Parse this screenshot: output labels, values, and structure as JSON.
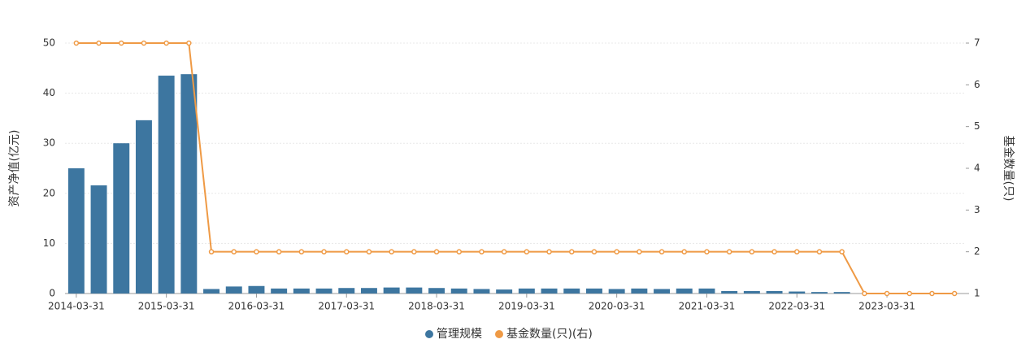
{
  "chart_data": {
    "type": "bar-line",
    "y_label": "资产净值(亿元)",
    "y2_label": "基金数量(只)",
    "categories": [
      "2014-03-31",
      null,
      null,
      null,
      "2015-03-31",
      null,
      null,
      null,
      "2016-03-31",
      null,
      null,
      null,
      "2017-03-31",
      null,
      null,
      null,
      "2018-03-31",
      null,
      null,
      null,
      "2019-03-31",
      null,
      null,
      null,
      "2020-03-31",
      null,
      null,
      null,
      "2021-03-31",
      null,
      null,
      null,
      "2022-03-31",
      null,
      null,
      null,
      "2023-03-31",
      null,
      null,
      null
    ],
    "series": [
      {
        "name": "管理规模",
        "type": "bar",
        "color": "#3d76a0",
        "values": [
          25,
          21.6,
          30,
          34.6,
          43.5,
          43.8,
          0.9,
          1.4,
          1.5,
          1.0,
          1.0,
          1.0,
          1.1,
          1.1,
          1.2,
          1.2,
          1.1,
          1.0,
          0.9,
          0.8,
          1.0,
          1.0,
          1.0,
          1.0,
          0.9,
          1.0,
          0.9,
          1.0,
          1.0,
          0.5,
          0.5,
          0.5,
          0.4,
          0.3,
          0.3,
          null,
          null,
          null,
          null,
          null
        ]
      },
      {
        "name": "基金数量(只)(右)",
        "type": "line",
        "axis": "y2",
        "color": "#ef9a45",
        "values": [
          7,
          7,
          7,
          7,
          7,
          7,
          2,
          2,
          2,
          2,
          2,
          2,
          2,
          2,
          2,
          2,
          2,
          2,
          2,
          2,
          2,
          2,
          2,
          2,
          2,
          2,
          2,
          2,
          2,
          2,
          2,
          2,
          2,
          2,
          2,
          1,
          1,
          1,
          1,
          1
        ]
      }
    ],
    "ylim": [
      0,
      50
    ],
    "yticks": [
      0,
      10,
      20,
      30,
      40,
      50
    ],
    "y2lim": [
      1,
      7
    ],
    "y2ticks": [
      1,
      2,
      3,
      4,
      5,
      6,
      7
    ],
    "grid": true,
    "legend": "bottom"
  }
}
